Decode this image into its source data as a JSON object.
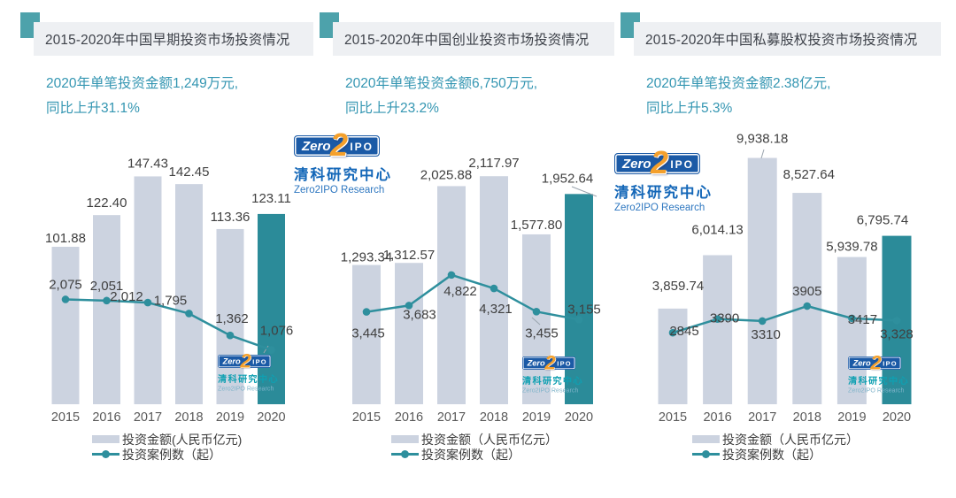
{
  "colors": {
    "bar_gray": "#ccd3e0",
    "bar_highlight_teal": "#2b8b99",
    "line_teal": "#2e8f9d",
    "header_bg": "#eef0f3",
    "header_square_teal": "#4da2ab",
    "subtitle_teal": "#3496b2",
    "value_label": "#404040",
    "logo_blue": "#1b5aa6",
    "logo_orange": "#f4a02c"
  },
  "logo": {
    "zero": "Zero",
    "two": "2",
    "ipo": "IPO",
    "cn": "清科研究中心",
    "en": "Zero2IPO Research"
  },
  "chart_data": [
    {
      "type": "bar+line",
      "title": "2015-2020年中国早期投资市场投资情况",
      "subtitle": [
        "2020年单笔投资金额1,249万元,",
        "同比上升31.1%"
      ],
      "categories": [
        "2015",
        "2016",
        "2017",
        "2018",
        "2019",
        "2020"
      ],
      "series": [
        {
          "name": "投资金额(人民币亿元)",
          "type": "bar",
          "values": [
            101.88,
            122.4,
            147.43,
            142.45,
            113.36,
            123.11
          ],
          "labels": [
            "101.88",
            "122.40",
            "147.43",
            "142.45",
            "113.36",
            "123.11"
          ],
          "highlight_last": true
        },
        {
          "name": "投资案例数（起）",
          "type": "line",
          "values": [
            2075,
            2051,
            2012,
            1795,
            1362,
            1076
          ],
          "labels": [
            "2,075",
            "2,051",
            "2,012",
            "1,795",
            "1,362",
            "1,076"
          ]
        }
      ],
      "bar_axis_max": 170,
      "line_axis_max": 5200,
      "grid": false,
      "legend_position": "bottom"
    },
    {
      "type": "bar+line",
      "title": "2015-2020年中国创业投资市场投资情况",
      "subtitle": [
        "2020年单笔投资金额6,750万元,",
        "同比上升23.2%"
      ],
      "categories": [
        "2015",
        "2016",
        "2017",
        "2018",
        "2019",
        "2020"
      ],
      "series": [
        {
          "name": "投资金额（人民币亿元）",
          "type": "bar",
          "values": [
            1293.34,
            1312.57,
            2025.88,
            2117.97,
            1577.8,
            1952.64
          ],
          "labels": [
            "1,293.34",
            "1,312.57",
            "2,025.88",
            "2,117.97",
            "1,577.80",
            "1,952.64"
          ],
          "highlight_last": true
        },
        {
          "name": "投资案例数（起）",
          "type": "line",
          "values": [
            3445,
            3683,
            4822,
            4321,
            3455,
            3155
          ],
          "labels": [
            "3,445",
            "3,683",
            "4,822",
            "4,321",
            "3,455",
            "3,155"
          ]
        }
      ],
      "bar_axis_max": 2440,
      "line_axis_max": 9800,
      "grid": false,
      "legend_position": "bottom"
    },
    {
      "type": "bar+line",
      "title": "2015-2020年中国私募股权投资市场投资情况",
      "subtitle": [
        "2020年单笔投资金额2.38亿元,",
        "同比上升5.3%"
      ],
      "categories": [
        "2015",
        "2016",
        "2017",
        "2018",
        "2019",
        "2020"
      ],
      "series": [
        {
          "name": "投资金额（人民币亿元）",
          "type": "bar",
          "values": [
            3859.74,
            6014.13,
            9938.18,
            8527.64,
            5939.78,
            6795.74
          ],
          "labels": [
            "3,859.74",
            "6,014.13",
            "9,938.18",
            "8,527.64",
            "5,939.78",
            "6,795.74"
          ],
          "highlight_last": true
        },
        {
          "name": "投资案例数（起）",
          "type": "line",
          "values": [
            2845,
            3390,
            3310,
            3905,
            3417,
            3328
          ],
          "labels": [
            "2845",
            "3390",
            "3310",
            "3905",
            "3417",
            "3,328"
          ]
        }
      ],
      "bar_axis_max": 10600,
      "line_axis_max": 10450,
      "grid": false,
      "legend_position": "bottom"
    }
  ]
}
